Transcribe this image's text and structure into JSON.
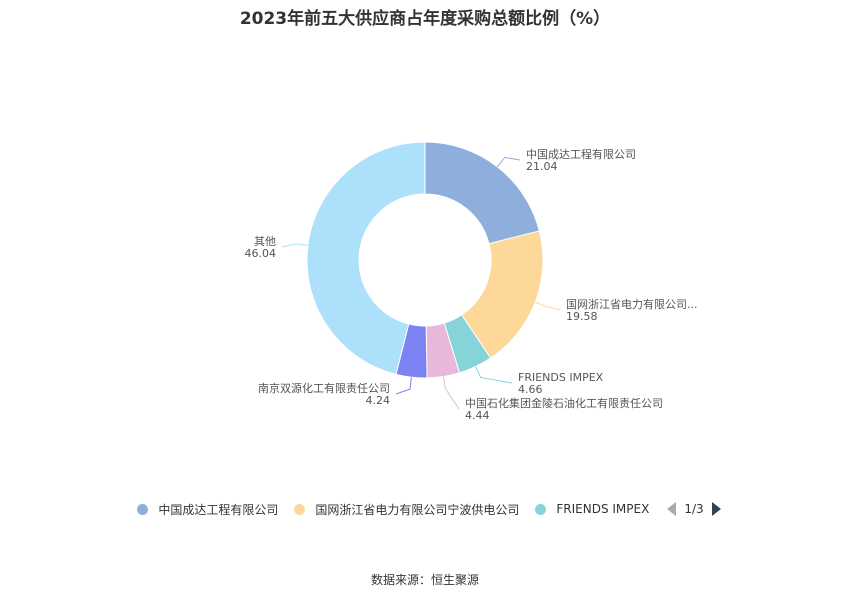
{
  "chart_data": {
    "type": "pie",
    "title": "2023年前五大供应商占年度采购总额比例（%）",
    "slices": [
      {
        "label": "中国成达工程有限公司",
        "display_label": "中国成达工程有限公司",
        "value": 21.04,
        "value_text": "21.04",
        "color": "#8eaedc"
      },
      {
        "label": "国网浙江省电力有限公司宁波供电公司",
        "display_label": "国网浙江省电力有限公司...",
        "value": 19.58,
        "value_text": "19.58",
        "color": "#fdd898"
      },
      {
        "label": "FRIENDS IMPEX",
        "display_label": "FRIENDS IMPEX",
        "value": 4.66,
        "value_text": "4.66",
        "color": "#86d4da"
      },
      {
        "label": "中国石化集团金陵石油化工有限责任公司",
        "display_label": "中国石化集团金陵石油化工有限责任公司",
        "value": 4.44,
        "value_text": "4.44",
        "color": "#e9b7d9"
      },
      {
        "label": "南京双源化工有限责任公司",
        "display_label": "南京双源化工有限责任公司",
        "value": 4.24,
        "value_text": "4.24",
        "color": "#7b82f2"
      },
      {
        "label": "其他",
        "display_label": "其他",
        "value": 46.04,
        "value_text": "46.04",
        "color": "#ade0fb"
      }
    ],
    "legend": {
      "position": "bottom",
      "visible_items": [
        {
          "label": "中国成达工程有限公司",
          "color": "#8eaedc"
        },
        {
          "label": "国网浙江省电力有限公司宁波供电公司",
          "color": "#fdd898"
        },
        {
          "label": "FRIENDS IMPEX",
          "color": "#86d4da"
        }
      ],
      "page_indicator": "1/3"
    }
  },
  "source": "数据来源：恒生聚源"
}
